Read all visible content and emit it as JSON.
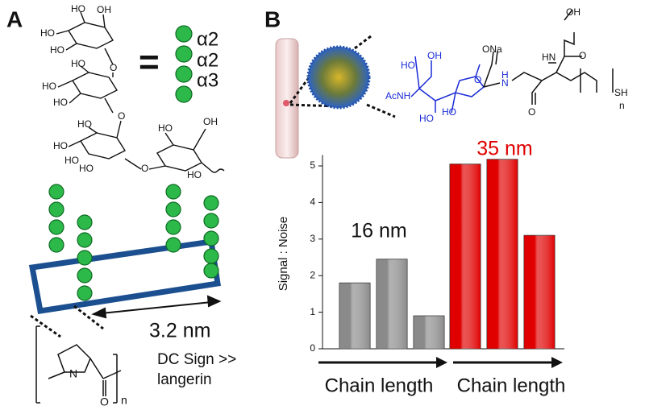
{
  "panel_a": {
    "label": "A",
    "glycan_labels": [
      "HO",
      "OH",
      "HO",
      "HO",
      "HO",
      "O",
      "HO",
      "HO",
      "HO",
      "O",
      "HO",
      "HO",
      "HO",
      "O",
      "HO",
      "OH",
      "HO"
    ],
    "equals": "=",
    "linkages": [
      "α2",
      "α2",
      "α3"
    ],
    "distance": "3.2 nm",
    "selectivity": [
      "DC Sign >>",
      "langerin"
    ],
    "proline_labels": [
      "N",
      "O",
      "n"
    ]
  },
  "panel_b": {
    "label": "B",
    "sialic_labels": [
      "OH",
      "HO",
      "AcNH",
      "HO",
      "HO",
      "O",
      "ONa",
      "H",
      "N",
      "O",
      "HN",
      "OH",
      "O",
      "SH",
      "n"
    ]
  },
  "chart_data": {
    "type": "bar",
    "ylabel": "Signal : Noise",
    "categories": [
      null,
      null,
      null,
      null,
      null,
      null
    ],
    "values": [
      1.8,
      2.45,
      0.9,
      5.05,
      5.18,
      3.1
    ],
    "colors": [
      "#8a8a8a",
      "#8a8a8a",
      "#8a8a8a",
      "#e00000",
      "#e00000",
      "#e00000"
    ],
    "ylim": [
      0,
      5.3
    ],
    "yticks": [
      0,
      1,
      2,
      3,
      4,
      5
    ],
    "annotations": [
      {
        "text": "16 nm",
        "color": "#111111"
      },
      {
        "text": "35 nm",
        "color": "#e00000"
      }
    ],
    "xlabels": [
      "Chain length",
      "Chain length"
    ]
  }
}
